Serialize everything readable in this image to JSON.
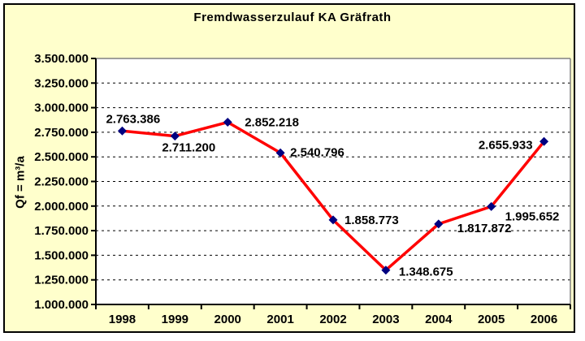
{
  "title": "Fremdwasserzulauf KA Gräfrath",
  "y_axis_title": "Qf = m³/a",
  "chart_data": {
    "type": "line",
    "title": "Fremdwasserzulauf KA Gräfrath",
    "ylabel": "Qf = m³/a",
    "xlabel": "",
    "categories": [
      "1998",
      "1999",
      "2000",
      "2001",
      "2002",
      "2003",
      "2004",
      "2005",
      "2006"
    ],
    "values": [
      2763386,
      2711200,
      2852218,
      2540796,
      1858773,
      1348675,
      1817872,
      1995652,
      2655933
    ],
    "point_labels": [
      "2.763.386",
      "2.711.200",
      "2.852.218",
      "2.540.796",
      "1.858.773",
      "1.348.675",
      "1.817.872",
      "1.995.652",
      "2.655.933"
    ],
    "ylim": [
      1000000,
      3500000
    ],
    "ytick_step": 250000,
    "ytick_labels": [
      "1.000.000",
      "1.250.000",
      "1.500.000",
      "1.750.000",
      "2.000.000",
      "2.250.000",
      "2.500.000",
      "2.750.000",
      "3.000.000",
      "3.250.000",
      "3.500.000"
    ],
    "grid": "horizontal-dashed",
    "legend": "none",
    "colors": {
      "line": "#ff0000",
      "marker": "#000080",
      "chart_background": "#ffffcc",
      "plot_background": "#ffffff",
      "gridline": "#000000",
      "plot_border": "#808080",
      "axis": "#000000",
      "text": "#000000"
    }
  }
}
